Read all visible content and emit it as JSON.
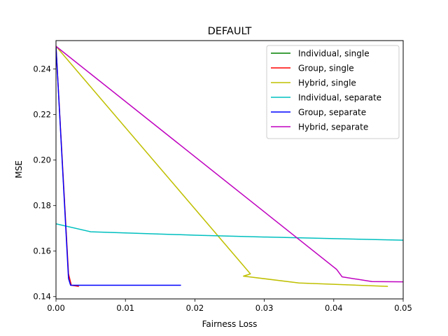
{
  "chart_data": {
    "type": "line",
    "title": "DEFAULT",
    "xlabel": "Fairness Loss",
    "ylabel": "MSE",
    "xlim": [
      0.0,
      0.05
    ],
    "ylim": [
      0.139,
      0.2525
    ],
    "xticks": [
      0.0,
      0.01,
      0.02,
      0.03,
      0.04,
      0.05
    ],
    "xtick_labels": [
      "0.00",
      "0.01",
      "0.02",
      "0.03",
      "0.04",
      "0.05"
    ],
    "yticks": [
      0.14,
      0.16,
      0.18,
      0.2,
      0.22,
      0.24
    ],
    "ytick_labels": [
      "0.14",
      "0.16",
      "0.18",
      "0.20",
      "0.22",
      "0.24"
    ],
    "grid": false,
    "legend_position": "top-right",
    "series": [
      {
        "name": "Individual, single",
        "color": "#008000",
        "x": [
          0.0,
          0.0
        ],
        "y": [
          0.25,
          0.25
        ]
      },
      {
        "name": "Group, single",
        "color": "#ff0000",
        "x": [
          0.0,
          0.0018,
          0.0022,
          0.0033
        ],
        "y": [
          0.25,
          0.15,
          0.145,
          0.1445
        ]
      },
      {
        "name": "Hybrid, single",
        "color": "#bfbf00",
        "x": [
          0.0,
          0.028,
          0.027,
          0.035,
          0.0478
        ],
        "y": [
          0.25,
          0.15,
          0.149,
          0.146,
          0.1445
        ]
      },
      {
        "name": "Individual, separate",
        "color": "#00bfbf",
        "x": [
          0.0,
          0.005,
          0.01,
          0.02,
          0.03,
          0.04,
          0.05
        ],
        "y": [
          0.172,
          0.1685,
          0.168,
          0.167,
          0.1662,
          0.1655,
          0.1648
        ]
      },
      {
        "name": "Group, separate",
        "color": "#0000ff",
        "x": [
          0.0,
          0.0018,
          0.0021,
          0.005,
          0.018
        ],
        "y": [
          0.25,
          0.148,
          0.145,
          0.145,
          0.145
        ]
      },
      {
        "name": "Hybrid, separate",
        "color": "#bf00bf",
        "x": [
          0.0,
          0.0404,
          0.0412,
          0.0455,
          0.05
        ],
        "y": [
          0.25,
          0.152,
          0.1487,
          0.1466,
          0.1465
        ]
      }
    ]
  }
}
